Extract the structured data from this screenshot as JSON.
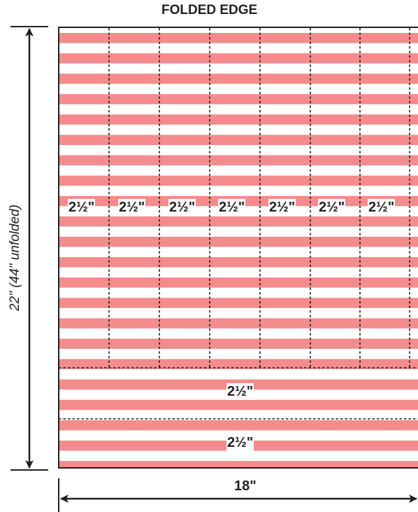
{
  "diagram": {
    "title": "FOLDED EDGE",
    "height_label": "22\" (44\" unfolded)",
    "width_label": "18\"",
    "vertical_strip_labels": [
      "2½\"",
      "2½\"",
      "2½\"",
      "2½\"",
      "2½\"",
      "2½\"",
      "2½\""
    ],
    "horizontal_strip_labels": [
      "2½\"",
      "2½\""
    ],
    "colors": {
      "stripe": "#f48b8c",
      "background": "#ffffff",
      "lines": "#231f20"
    }
  }
}
